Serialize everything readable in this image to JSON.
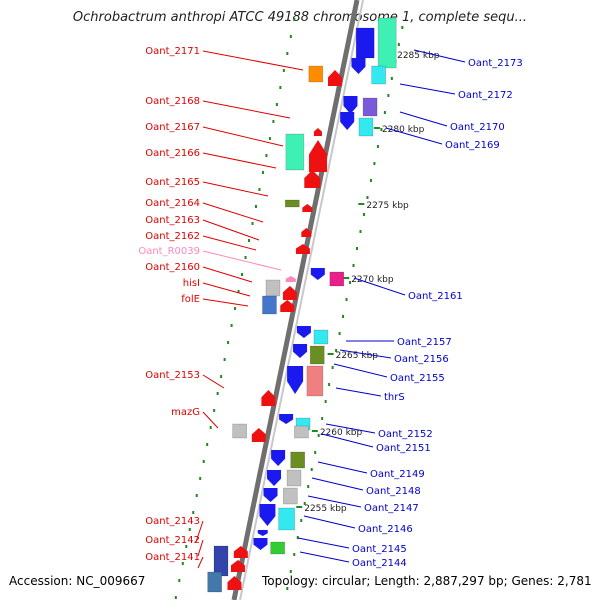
{
  "title": "Ochrobactrum anthropi ATCC 49188 chromosome 1, complete sequ...",
  "footer": {
    "accession": "Accession: NC_009667",
    "summary": "Topology: circular; Length: 2,887,297 bp; Genes: 2,781"
  },
  "colors": {
    "left_label": "#e00000",
    "right_label": "#0000cc",
    "rna_label": "#ff88bb",
    "tick": "#228822",
    "backbone": "#8a8a8a"
  },
  "scale_labels": [
    "2285 kbp",
    "2280 kbp",
    "2275 kbp",
    "2270 kbp",
    "2265 kbp",
    "2260 kbp",
    "2255 kbp"
  ],
  "genes_left": [
    "Oant_2171",
    "Oant_2168",
    "Oant_2167",
    "Oant_2166",
    "Oant_2165",
    "Oant_2164",
    "Oant_2163",
    "Oant_2162",
    "Oant_R0039",
    "Oant_2160",
    "hisI",
    "folE",
    "Oant_2153",
    "mazG",
    "Oant_2143",
    "Oant_2142",
    "Oant_2141"
  ],
  "genes_right": [
    "Oant_2173",
    "Oant_2172",
    "Oant_2170",
    "Oant_2169",
    "Oant_2161",
    "Oant_2157",
    "Oant_2156",
    "Oant_2155",
    "thrS",
    "Oant_2152",
    "Oant_2151",
    "Oant_2149",
    "Oant_2148",
    "Oant_2147",
    "Oant_2146",
    "Oant_2145",
    "Oant_2144"
  ]
}
